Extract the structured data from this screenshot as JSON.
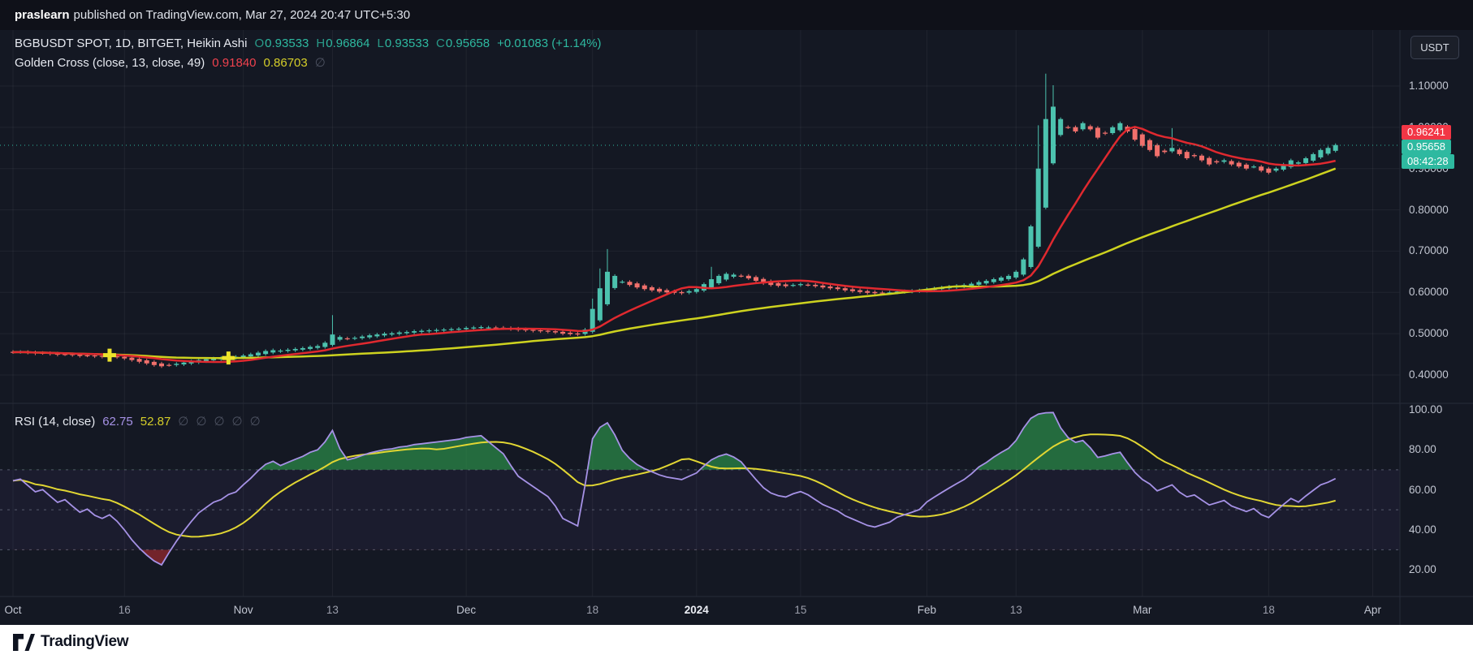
{
  "attribution": {
    "author": "praslearn",
    "rest": "published on TradingView.com, Mar 27, 2024 20:47 UTC+5:30"
  },
  "toolbar": {
    "currency_button": "USDT"
  },
  "main_legend": {
    "symbol_title": "BGBUSDT SPOT, 1D, BITGET, Heikin Ashi",
    "ohlc": [
      {
        "label": "O",
        "value": "0.93533"
      },
      {
        "label": "H",
        "value": "0.96864"
      },
      {
        "label": "L",
        "value": "0.93533"
      },
      {
        "label": "C",
        "value": "0.95658"
      }
    ],
    "change": "+0.01083 (+1.14%)"
  },
  "golden_cross_legend": {
    "title": "Golden Cross (close, 13, close, 49)",
    "value_fast": "0.91840",
    "value_slow": "0.86703",
    "hidden_icon": "∅"
  },
  "rsi_legend": {
    "title": "RSI (14, close)",
    "value_rsi": "62.75",
    "value_ma": "52.87",
    "hidden_icons": [
      "∅",
      "∅",
      "∅",
      "∅",
      "∅"
    ]
  },
  "price_axis": {
    "labels": [
      {
        "label": "1.10000",
        "price": 1.1
      },
      {
        "label": "1.00000",
        "price": 1.0
      },
      {
        "label": "0.90000",
        "price": 0.9
      },
      {
        "label": "0.80000",
        "price": 0.8
      },
      {
        "label": "0.70000",
        "price": 0.7
      },
      {
        "label": "0.60000",
        "price": 0.6
      },
      {
        "label": "0.50000",
        "price": 0.5
      },
      {
        "label": "0.40000",
        "price": 0.4
      }
    ],
    "badge_red": "0.96241",
    "badge_last": "0.95658",
    "badge_countdown": "08:42:28",
    "rsi_labels": [
      {
        "label": "100.00",
        "value": 100
      },
      {
        "label": "80.00",
        "value": 80
      },
      {
        "label": "60.00",
        "value": 60
      },
      {
        "label": "40.00",
        "value": 40
      },
      {
        "label": "20.00",
        "value": 20
      }
    ]
  },
  "time_axis": {
    "ticks": [
      {
        "label": "Oct",
        "day": 0,
        "kind": "major"
      },
      {
        "label": "16",
        "day": 15,
        "kind": "minor"
      },
      {
        "label": "Nov",
        "day": 31,
        "kind": "major"
      },
      {
        "label": "13",
        "day": 43,
        "kind": "minor"
      },
      {
        "label": "Dec",
        "day": 61,
        "kind": "major"
      },
      {
        "label": "18",
        "day": 78,
        "kind": "minor"
      },
      {
        "label": "2024",
        "day": 92,
        "kind": "year"
      },
      {
        "label": "15",
        "day": 106,
        "kind": "minor"
      },
      {
        "label": "Feb",
        "day": 123,
        "kind": "major"
      },
      {
        "label": "13",
        "day": 135,
        "kind": "minor"
      },
      {
        "label": "Mar",
        "day": 152,
        "kind": "major"
      },
      {
        "label": "18",
        "day": 169,
        "kind": "minor"
      },
      {
        "label": "Apr",
        "day": 183,
        "kind": "major"
      }
    ]
  },
  "footer": {
    "logo_text": "TradingView"
  },
  "colors": {
    "up": "#4cc2ae",
    "down": "#f1706c",
    "ma_fast": "#e0292f",
    "ma_slow": "#cdd21f",
    "rsi": "#a692e6",
    "rsi_ma": "#e1d633",
    "marker": "#ece32c",
    "badge_red": "#f23645",
    "badge_teal": "#2eb9a0",
    "grid": "rgba(255,255,255,0.055)",
    "divider": "#262b38",
    "rsi_band_fill": "rgba(126,87,194,0.07)",
    "rsi_overbought_fill": "rgba(46,158,79,0.62)",
    "rsi_oversold_fill": "rgba(178,45,48,0.6)"
  },
  "chart_data": {
    "type": "candlestick",
    "title": "BGBUSDT SPOT, 1D, BITGET, Heikin Ashi",
    "symbol": "BGBUSDT",
    "exchange": "BITGET",
    "interval": "1D",
    "style": "Heikin Ashi",
    "start_date": "2023-10-01",
    "last_price": 0.95658,
    "ohlc_current": {
      "o": 0.93533,
      "h": 0.96864,
      "l": 0.93533,
      "c": 0.95658,
      "change": 0.01083,
      "change_pct": 1.14
    },
    "price_axis_ticks": [
      1.1,
      1.0,
      0.9,
      0.8,
      0.7,
      0.6,
      0.5,
      0.4
    ],
    "rsi_axis_ticks": [
      100,
      80,
      60,
      40,
      20
    ],
    "ma_fast_period": 13,
    "ma_slow_period": 49,
    "ma_fast_current": 0.9184,
    "ma_slow_current": 0.86703,
    "markers": [
      {
        "day": 13,
        "price": 0.448
      },
      {
        "day": 29,
        "price": 0.441
      }
    ],
    "rsi": {
      "period": 14,
      "ma_period": 14,
      "levels": [
        70,
        50,
        30
      ],
      "current": 62.75,
      "ma_current": 52.87
    },
    "candles": {
      "first_open": 0.456,
      "wick": 0.004,
      "spike_highs": {
        "43": 0.545,
        "78": 0.585,
        "79": 0.658,
        "80": 0.705,
        "94": 0.662,
        "138": 1.005,
        "139": 1.13,
        "140": 1.102,
        "156": 0.998
      },
      "closes": [
        0.455,
        0.456,
        0.454,
        0.452,
        0.453,
        0.451,
        0.449,
        0.45,
        0.448,
        0.446,
        0.447,
        0.445,
        0.444,
        0.445,
        0.443,
        0.44,
        0.436,
        0.432,
        0.428,
        0.424,
        0.421,
        0.424,
        0.427,
        0.43,
        0.433,
        0.436,
        0.438,
        0.44,
        0.441,
        0.443,
        0.444,
        0.447,
        0.45,
        0.454,
        0.458,
        0.46,
        0.459,
        0.461,
        0.463,
        0.465,
        0.468,
        0.47,
        0.478,
        0.498,
        0.492,
        0.488,
        0.49,
        0.493,
        0.496,
        0.498,
        0.5,
        0.501,
        0.503,
        0.504,
        0.506,
        0.507,
        0.508,
        0.509,
        0.51,
        0.511,
        0.512,
        0.514,
        0.515,
        0.516,
        0.515,
        0.514,
        0.513,
        0.511,
        0.509,
        0.508,
        0.507,
        0.506,
        0.505,
        0.503,
        0.5,
        0.499,
        0.498,
        0.51,
        0.56,
        0.61,
        0.65,
        0.64,
        0.626,
        0.618,
        0.612,
        0.608,
        0.605,
        0.602,
        0.6,
        0.599,
        0.598,
        0.603,
        0.608,
        0.62,
        0.632,
        0.64,
        0.645,
        0.643,
        0.64,
        0.634,
        0.628,
        0.622,
        0.618,
        0.616,
        0.615,
        0.618,
        0.62,
        0.618,
        0.615,
        0.612,
        0.61,
        0.608,
        0.605,
        0.603,
        0.601,
        0.599,
        0.598,
        0.599,
        0.6,
        0.602,
        0.603,
        0.604,
        0.605,
        0.608,
        0.61,
        0.612,
        0.614,
        0.616,
        0.618,
        0.621,
        0.625,
        0.628,
        0.632,
        0.636,
        0.64,
        0.65,
        0.68,
        0.76,
        0.9,
        1.02,
        1.05,
        1.02,
        1.0,
        0.99,
        1.01,
        0.995,
        0.975,
        0.985,
        1.0,
        1.01,
        0.99,
        0.97,
        0.955,
        0.945,
        0.93,
        0.94,
        0.95,
        0.935,
        0.925,
        0.93,
        0.92,
        0.91,
        0.915,
        0.92,
        0.91,
        0.905,
        0.9,
        0.905,
        0.895,
        0.89,
        0.9,
        0.91,
        0.92,
        0.915,
        0.925,
        0.935,
        0.945,
        0.95,
        0.957
      ]
    }
  }
}
